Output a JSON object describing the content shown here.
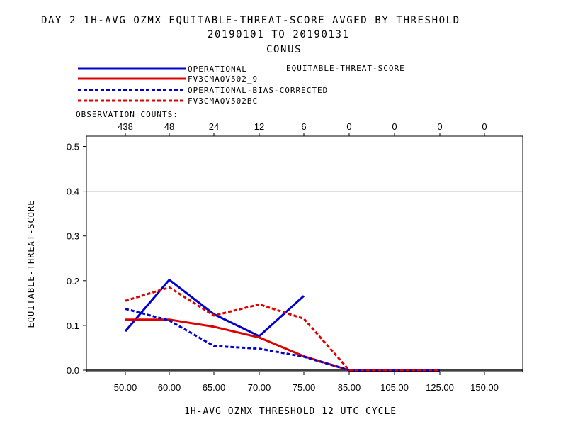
{
  "header": {
    "title_line1": "DAY 2   1H-AVG OZMX EQUITABLE-THREAT-SCORE   AVGED BY THRESHOLD",
    "title_line2": "20190101 TO 20190131",
    "title_line3": "CONUS"
  },
  "legend": {
    "metric_label": "EQUITABLE-THREAT-SCORE",
    "obs_counts_label": "OBSERVATION COUNTS:"
  },
  "axes": {
    "ylabel": "EQUITABLE-THREAT-SCORE",
    "xlabel": "1H-AVG OZMX THRESHOLD     12 UTC CYCLE"
  },
  "chart_data": {
    "type": "line",
    "categories": [
      "50.00",
      "60.00",
      "65.00",
      "70.00",
      "75.00",
      "85.00",
      "105.00",
      "125.00",
      "150.00"
    ],
    "observation_counts": [
      "438",
      "48",
      "24",
      "12",
      "6",
      "0",
      "0",
      "0",
      "0"
    ],
    "yticks": [
      "0.0",
      "0.1",
      "0.2",
      "0.3",
      "0.4",
      "0.5"
    ],
    "ylim": [
      0,
      0.53
    ],
    "reference_line": 0.4,
    "series": [
      {
        "name": "OPERATIONAL",
        "color": "#0000cc",
        "dash": false,
        "values": [
          0.087,
          0.202,
          0.125,
          0.076,
          0.166,
          null,
          null,
          null,
          null
        ]
      },
      {
        "name": "FV3CMAQV502_9",
        "color": "#dd0000",
        "dash": false,
        "values": [
          0.113,
          0.113,
          0.097,
          0.073,
          0.031,
          0.0,
          0.0,
          0.0,
          null
        ]
      },
      {
        "name": "OPERATIONAL-BIAS-CORRECTED",
        "color": "#0000cc",
        "dash": true,
        "values": [
          0.137,
          0.111,
          0.054,
          0.048,
          0.03,
          0.0,
          0.0,
          0.0,
          null
        ]
      },
      {
        "name": "FV3CMAQV502BC",
        "color": "#dd0000",
        "dash": true,
        "values": [
          0.155,
          0.185,
          0.122,
          0.147,
          0.115,
          0.0,
          0.0,
          0.0,
          null
        ]
      }
    ]
  }
}
